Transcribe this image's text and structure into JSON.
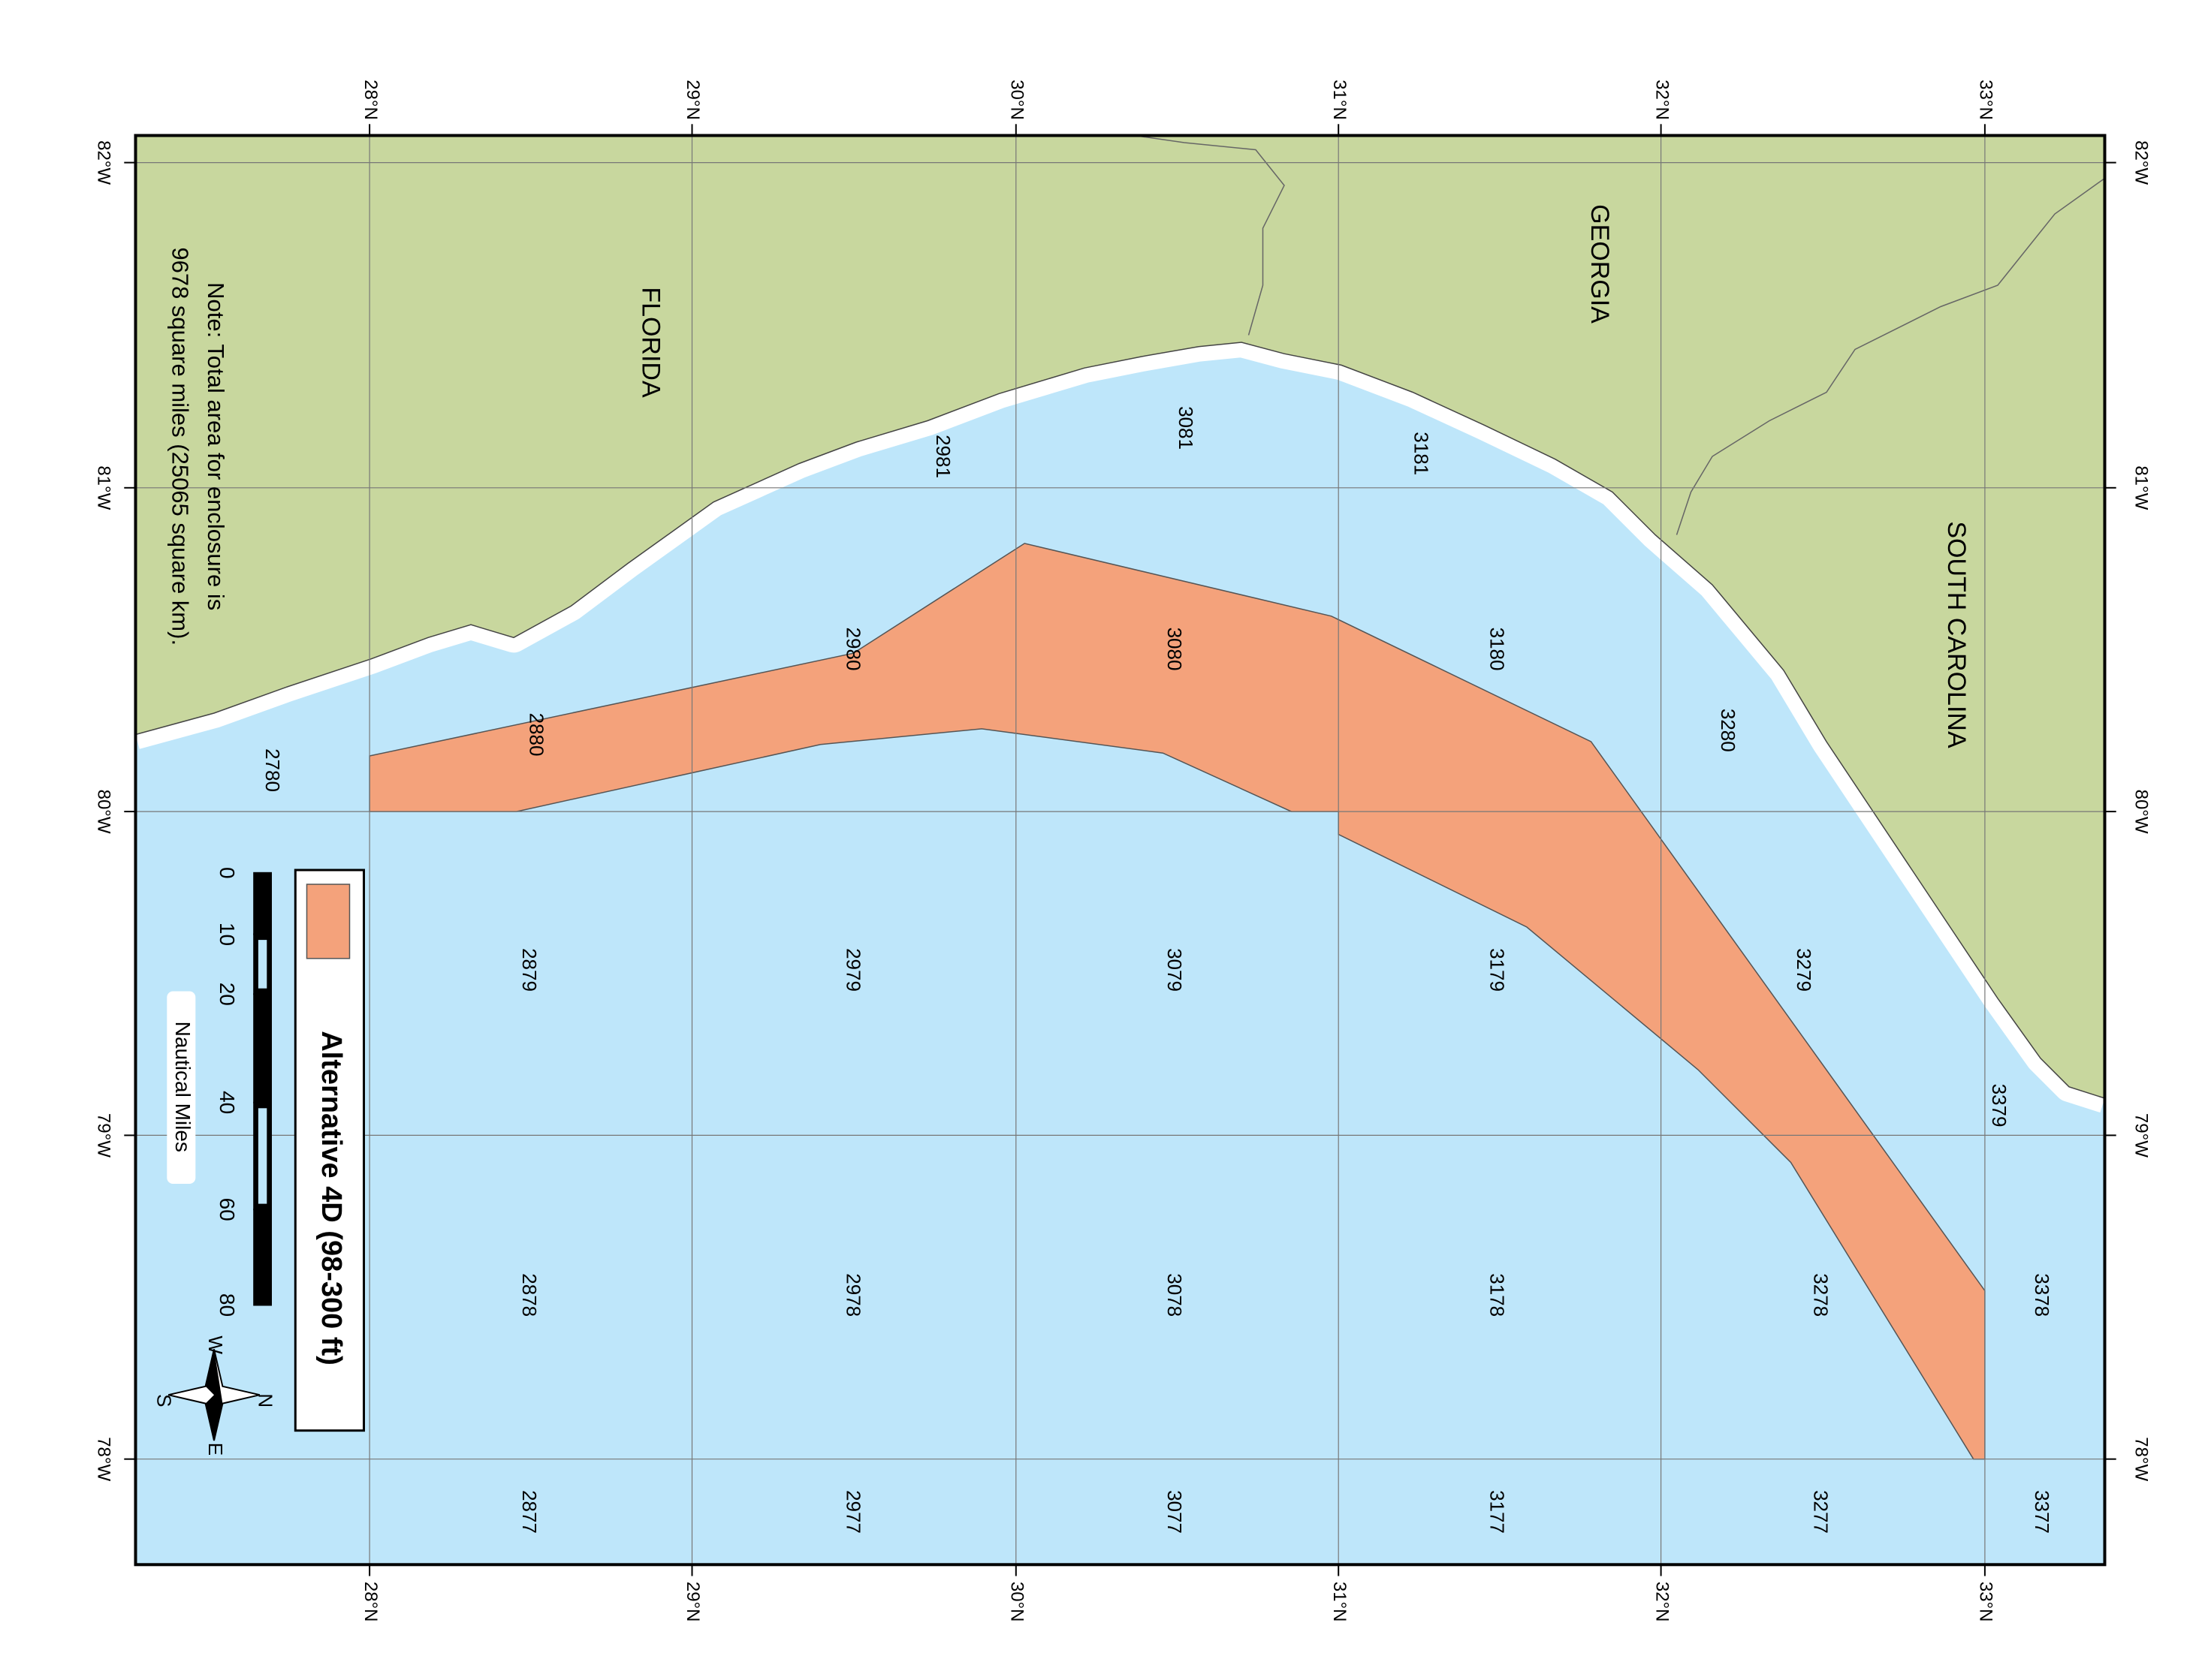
{
  "lat_labels": [
    "28°N",
    "29°N",
    "30°N",
    "31°N",
    "32°N",
    "33°N"
  ],
  "lon_labels": [
    "82°W",
    "81°W",
    "80°W",
    "79°W",
    "78°W"
  ],
  "states": [
    "FLORIDA",
    "GEORGIA",
    "SOUTH CAROLINA"
  ],
  "cells": [
    "2780",
    "2880",
    "2980",
    "3080",
    "3180",
    "3280",
    "2981",
    "3081",
    "3181",
    "2879",
    "2979",
    "3079",
    "3179",
    "3279",
    "3379",
    "2878",
    "2978",
    "3078",
    "3178",
    "3278",
    "3378",
    "2877",
    "2977",
    "3077",
    "3177",
    "3277",
    "3377"
  ],
  "note": [
    "Note: Total area for enclosure is",
    "9678 square miles (25065 square km)."
  ],
  "legend": {
    "title": "Alternative 4D (98-300 ft)"
  },
  "scale_bar": {
    "labels": [
      "0",
      "10",
      "20",
      "40",
      "60",
      "80"
    ],
    "unit": "Nautical Miles"
  },
  "compass": [
    "N",
    "E",
    "S",
    "W"
  ]
}
